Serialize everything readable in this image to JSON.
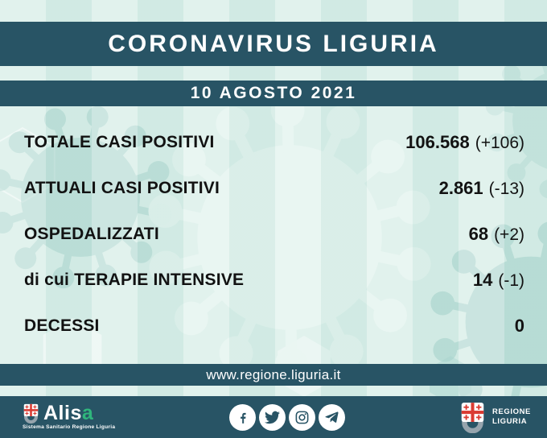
{
  "header": {
    "title": "CORONAVIRUS LIGURIA",
    "date": "10 AGOSTO 2021"
  },
  "stats": [
    {
      "label": "TOTALE CASI POSITIVI",
      "value": "106.568",
      "delta": "(+106)"
    },
    {
      "label": "ATTUALI CASI POSITIVI",
      "value": "2.861",
      "delta": "(-13)"
    },
    {
      "label": "OSPEDALIZZATI",
      "value": "68",
      "delta": "(+2)"
    },
    {
      "label": "di cui TERAPIE INTENSIVE",
      "value": "14",
      "delta": "(-1)"
    },
    {
      "label": "DECESSI",
      "value": "0",
      "delta": ""
    }
  ],
  "website_bar": {
    "url": "www.regione.liguria.it"
  },
  "footer": {
    "alisa": {
      "name_white": "Alis",
      "name_green": "a",
      "tagline": "Sistema Sanitario Regione Liguria"
    },
    "social_icons": [
      "facebook",
      "twitter",
      "instagram",
      "telegram"
    ],
    "regione": {
      "line1": "REGIONE",
      "line2": "LIGURIA"
    }
  },
  "colors": {
    "banner": "#285465",
    "background": "#d9eee8",
    "text": "#121212",
    "accent_green": "#2fb67c",
    "cross_red": "#da3b32"
  }
}
